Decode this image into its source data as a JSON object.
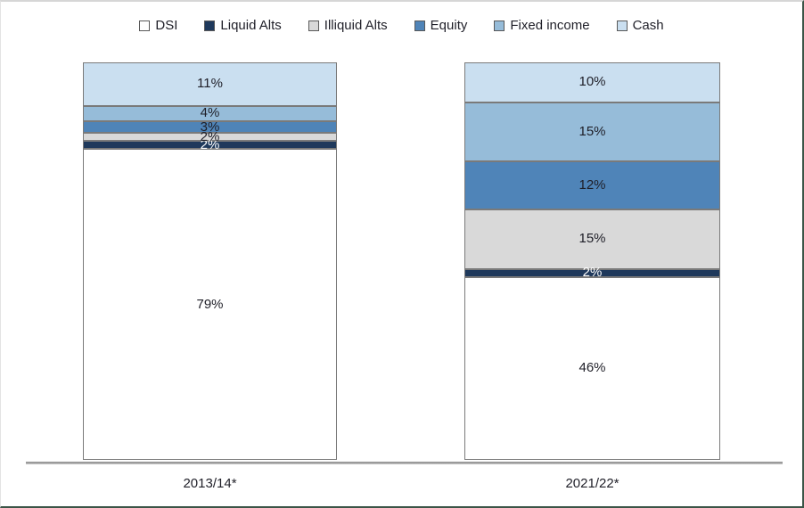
{
  "chart_data": {
    "type": "bar",
    "stacked": true,
    "percent_stacked": true,
    "title": "",
    "xlabel": "",
    "ylabel": "",
    "grid": false,
    "legend_position": "top",
    "value_suffix": "%",
    "categories": [
      "2013/14*",
      "2021/22*"
    ],
    "series": [
      {
        "name": "DSI",
        "values": [
          79,
          46
        ],
        "color": "#ffffff",
        "label_color": "#1f1f28"
      },
      {
        "name": "Liquid Alts",
        "values": [
          2,
          2
        ],
        "color": "#1f395c",
        "label_color": "#ffffff"
      },
      {
        "name": "Illiquid Alts",
        "values": [
          2,
          15
        ],
        "color": "#d9d9d9",
        "label_color": "#1f1f28"
      },
      {
        "name": "Equity",
        "values": [
          3,
          12
        ],
        "color": "#4f84b8",
        "label_color": "#1f1f28"
      },
      {
        "name": "Fixed income",
        "values": [
          4,
          15
        ],
        "color": "#96bcd9",
        "label_color": "#1f1f28"
      },
      {
        "name": "Cash",
        "values": [
          11,
          10
        ],
        "color": "#cadff0",
        "label_color": "#1f1f28"
      }
    ],
    "colors": {
      "segment_border": "#7a7a7a",
      "axis_line": "#8a8a8a",
      "text": "#1f1f28"
    }
  }
}
